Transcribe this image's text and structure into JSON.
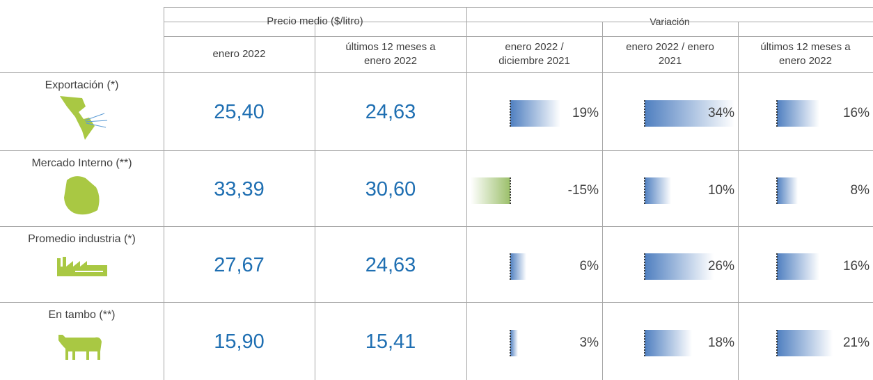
{
  "table": {
    "group_headers": [
      "Precio medio ($/litro)",
      "Variación"
    ],
    "column_headers": [
      "enero 2022",
      "últimos 12 meses a enero 2022",
      "enero 2022 / diciembre 2021",
      "enero 2022 / enero 2021",
      "últimos 12 meses a enero 2022"
    ],
    "rows": [
      {
        "label": "Exportación (*)",
        "prices": [
          "25,40",
          "24,63"
        ],
        "values": [
          19,
          34,
          16
        ],
        "value_labels": [
          "19%",
          "34%",
          "16%"
        ]
      },
      {
        "label": "Mercado Interno (**)",
        "prices": [
          "33,39",
          "30,60"
        ],
        "values": [
          -15,
          10,
          8
        ],
        "value_labels": [
          "-15%",
          "10%",
          "8%"
        ]
      },
      {
        "label": "Promedio industria (*)",
        "prices": [
          "27,67",
          "24,63"
        ],
        "values": [
          6,
          26,
          16
        ],
        "value_labels": [
          "6%",
          "26%",
          "16%"
        ]
      },
      {
        "label": "En tambo (**)",
        "prices": [
          "15,90",
          "15,41"
        ],
        "values": [
          3,
          18,
          21
        ],
        "value_labels": [
          "3%",
          "18%",
          "21%"
        ]
      }
    ]
  }
}
